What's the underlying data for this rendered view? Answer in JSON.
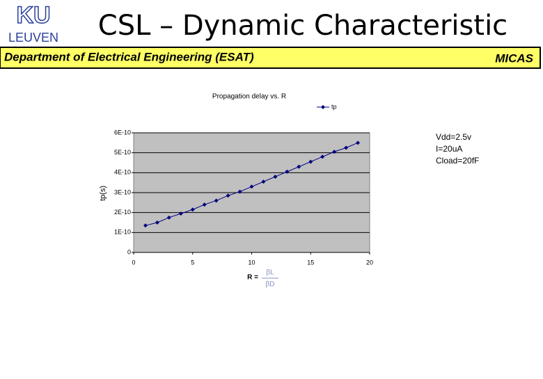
{
  "slide": {
    "logo_top": "KU",
    "logo_bottom": "LEUVEN",
    "title": "CSL – Dynamic Characteristic",
    "department": "Department of Electrical Engineering (ESAT)",
    "group": "MICAS"
  },
  "chart_data": {
    "type": "line",
    "title": "Propagation delay vs. R",
    "ylabel": "tp(s)",
    "xlabel": {
      "lhs": "R =",
      "numerator": "βL",
      "denominator": "βD"
    },
    "annotations": [
      "Vdd=2.5v",
      "I=20uA",
      "Cload=20fF"
    ],
    "x": [
      1,
      2,
      3,
      4,
      5,
      6,
      7,
      8,
      9,
      10,
      11,
      12,
      13,
      14,
      15,
      16,
      17,
      18,
      19
    ],
    "series": [
      {
        "name": "tp",
        "color": "#000080",
        "values": [
          1.35e-10,
          1.5e-10,
          1.75e-10,
          1.95e-10,
          2.15e-10,
          2.4e-10,
          2.6e-10,
          2.85e-10,
          3.05e-10,
          3.3e-10,
          3.55e-10,
          3.8e-10,
          4.05e-10,
          4.3e-10,
          4.55e-10,
          4.8e-10,
          5.05e-10,
          5.25e-10,
          5.5e-10
        ]
      }
    ],
    "xlim": [
      0,
      20
    ],
    "xticks": [
      0,
      5,
      10,
      15,
      20
    ],
    "ylim": [
      0,
      6e-10
    ],
    "yticks": [
      0,
      {
        "value": 1e-10,
        "label": "1E-10"
      },
      {
        "value": 2e-10,
        "label": "2E-10"
      },
      {
        "value": 3e-10,
        "label": "3E-10"
      },
      {
        "value": 4e-10,
        "label": "4E-10"
      },
      {
        "value": 5e-10,
        "label": "5E-10"
      },
      {
        "value": 6e-10,
        "label": "6E-10"
      }
    ],
    "grid": true,
    "plot_background": "#c0c0c0",
    "legend": "top-right"
  }
}
